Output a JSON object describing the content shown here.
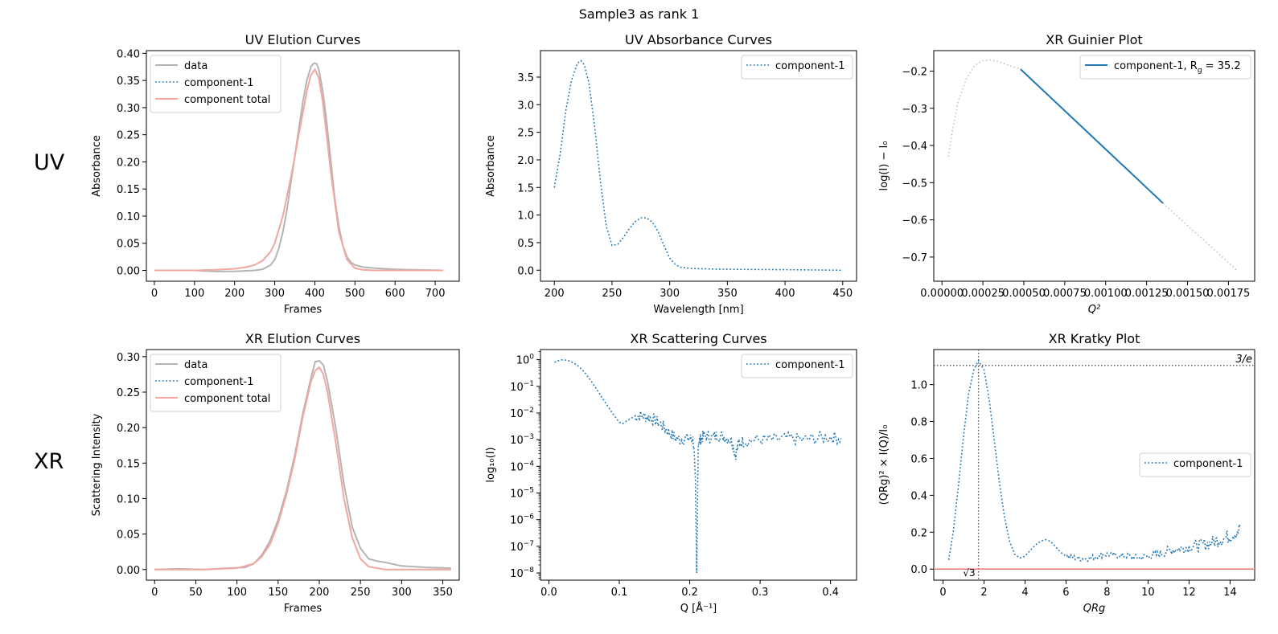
{
  "figure": {
    "suptitle": "Sample3 as rank 1",
    "row_labels": [
      "UV",
      "XR"
    ]
  },
  "colors": {
    "data": "#b4b4b4",
    "component": "#1f77b4",
    "total": "#f4a6a0",
    "total_line_kratky": "#f08080",
    "ref_line": "#555555",
    "guinier_fit": "#1f77b4",
    "guinier_outside": "#c0c0c0"
  },
  "chart_data": [
    {
      "id": "uv_elution",
      "type": "line",
      "title": "UV Elution Curves",
      "xlabel": "Frames",
      "ylabel": "Absorbance",
      "xlim": [
        -20,
        760
      ],
      "ylim": [
        -0.02,
        0.405
      ],
      "xticks": [
        0,
        100,
        200,
        300,
        400,
        500,
        600,
        700
      ],
      "yticks": [
        0.0,
        0.05,
        0.1,
        0.15,
        0.2,
        0.25,
        0.3,
        0.35,
        0.4
      ],
      "ytick_labels": [
        "0.00",
        "0.05",
        "0.10",
        "0.15",
        "0.20",
        "0.25",
        "0.30",
        "0.35",
        "0.40"
      ],
      "legend": "top-left",
      "series": [
        {
          "name": "data",
          "style": "data",
          "x": [
            0,
            50,
            100,
            150,
            200,
            250,
            270,
            290,
            300,
            310,
            320,
            330,
            340,
            350,
            360,
            370,
            380,
            390,
            395,
            400,
            405,
            410,
            420,
            430,
            440,
            450,
            460,
            470,
            480,
            490,
            500,
            520,
            550,
            600,
            650,
            720
          ],
          "y": [
            0.0,
            0.0,
            0.0,
            -0.002,
            -0.002,
            0.0,
            0.002,
            0.01,
            0.02,
            0.04,
            0.07,
            0.11,
            0.16,
            0.21,
            0.26,
            0.31,
            0.35,
            0.375,
            0.38,
            0.382,
            0.38,
            0.37,
            0.33,
            0.27,
            0.2,
            0.13,
            0.08,
            0.045,
            0.025,
            0.015,
            0.01,
            0.006,
            0.004,
            0.002,
            0.001,
            0.0
          ]
        },
        {
          "name": "component-1",
          "style": "component",
          "x": [
            0,
            100,
            150,
            200,
            230,
            250,
            270,
            290,
            300,
            320,
            340,
            360,
            380,
            390,
            400,
            410,
            420,
            440,
            460,
            480,
            500,
            520,
            550,
            600,
            720
          ],
          "y": [
            0.0,
            0.0,
            0.001,
            0.003,
            0.006,
            0.01,
            0.018,
            0.035,
            0.05,
            0.1,
            0.17,
            0.25,
            0.33,
            0.36,
            0.37,
            0.355,
            0.31,
            0.18,
            0.07,
            0.02,
            0.004,
            0.001,
            0.0,
            0.0,
            0.0
          ]
        },
        {
          "name": "component total",
          "style": "total",
          "x": [
            0,
            100,
            150,
            200,
            230,
            250,
            270,
            290,
            300,
            320,
            340,
            360,
            380,
            390,
            400,
            410,
            420,
            440,
            460,
            480,
            500,
            520,
            550,
            600,
            720
          ],
          "y": [
            0.0,
            0.0,
            0.001,
            0.003,
            0.006,
            0.01,
            0.018,
            0.035,
            0.05,
            0.1,
            0.17,
            0.25,
            0.33,
            0.36,
            0.37,
            0.355,
            0.31,
            0.18,
            0.07,
            0.02,
            0.004,
            0.001,
            0.0,
            0.0,
            0.0
          ]
        }
      ]
    },
    {
      "id": "uv_absorbance",
      "type": "line",
      "title": "UV Absorbance Curves",
      "xlabel": "Wavelength [nm]",
      "ylabel": "Absorbance",
      "xlim": [
        188,
        462
      ],
      "ylim": [
        -0.2,
        3.98
      ],
      "xticks": [
        200,
        250,
        300,
        350,
        400,
        450
      ],
      "yticks": [
        0.0,
        0.5,
        1.0,
        1.5,
        2.0,
        2.5,
        3.0,
        3.5
      ],
      "ytick_labels": [
        "0.0",
        "0.5",
        "1.0",
        "1.5",
        "2.0",
        "2.5",
        "3.0",
        "3.5"
      ],
      "legend": "top-right",
      "series": [
        {
          "name": "component-1",
          "style": "component",
          "x": [
            200,
            205,
            210,
            215,
            220,
            223,
            226,
            230,
            235,
            240,
            245,
            250,
            255,
            260,
            265,
            270,
            275,
            280,
            285,
            290,
            295,
            300,
            305,
            310,
            320,
            340,
            360,
            400,
            450
          ],
          "y": [
            1.5,
            2.1,
            2.9,
            3.45,
            3.75,
            3.8,
            3.72,
            3.4,
            2.6,
            1.6,
            0.8,
            0.45,
            0.47,
            0.6,
            0.75,
            0.88,
            0.95,
            0.95,
            0.87,
            0.7,
            0.45,
            0.22,
            0.1,
            0.05,
            0.03,
            0.02,
            0.015,
            0.01,
            0.0
          ]
        }
      ]
    },
    {
      "id": "xr_guinier",
      "type": "line",
      "title": "XR Guinier Plot",
      "xlabel": "Q²",
      "ylabel": "log(I) − I₀",
      "xlim": [
        -5e-05,
        0.00191
      ],
      "ylim": [
        -0.765,
        -0.145
      ],
      "xticks": [
        0.0,
        0.00025,
        0.0005,
        0.00075,
        0.001,
        0.00125,
        0.0015,
        0.00175
      ],
      "xtick_labels": [
        "0.00000",
        "0.00025",
        "0.00050",
        "0.00075",
        "0.00100",
        "0.00125",
        "0.00150",
        "0.00175"
      ],
      "yticks": [
        -0.7,
        -0.6,
        -0.5,
        -0.4,
        -0.3,
        -0.2
      ],
      "ytick_labels": [
        "−0.7",
        "−0.6",
        "−0.5",
        "−0.4",
        "−0.3",
        "−0.2"
      ],
      "legend": "top-right",
      "legend_label": "component-1, R",
      "legend_sub": "g",
      "legend_value": " = 35.2",
      "series": [
        {
          "name": "data-outside",
          "style": "outside",
          "x": [
            4e-05,
            6e-05,
            0.0001,
            0.00015,
            0.0002,
            0.00025,
            0.0003,
            0.00035,
            0.0004,
            0.00048
          ],
          "y": [
            -0.43,
            -0.37,
            -0.28,
            -0.22,
            -0.185,
            -0.172,
            -0.17,
            -0.175,
            -0.183,
            -0.195
          ]
        },
        {
          "name": "component-1",
          "style": "fit",
          "x": [
            0.00048,
            0.00135
          ],
          "y": [
            -0.195,
            -0.555
          ]
        },
        {
          "name": "data-outside-2",
          "style": "outside",
          "x": [
            0.00135,
            0.0015,
            0.00165,
            0.0018
          ],
          "y": [
            -0.555,
            -0.615,
            -0.675,
            -0.735
          ]
        }
      ]
    },
    {
      "id": "xr_elution",
      "type": "line",
      "title": "XR Elution Curves",
      "xlabel": "Frames",
      "ylabel": "Scattering Intensity",
      "xlim": [
        -10,
        370
      ],
      "ylim": [
        -0.015,
        0.31
      ],
      "xticks": [
        0,
        50,
        100,
        150,
        200,
        250,
        300,
        350
      ],
      "yticks": [
        0.0,
        0.05,
        0.1,
        0.15,
        0.2,
        0.25,
        0.3
      ],
      "ytick_labels": [
        "0.00",
        "0.05",
        "0.10",
        "0.15",
        "0.20",
        "0.25",
        "0.30"
      ],
      "legend": "top-left",
      "series": [
        {
          "name": "data",
          "style": "data",
          "x": [
            0,
            30,
            60,
            90,
            110,
            120,
            130,
            140,
            150,
            160,
            170,
            180,
            190,
            195,
            200,
            205,
            210,
            220,
            230,
            240,
            250,
            260,
            270,
            280,
            300,
            330,
            360
          ],
          "y": [
            0.0,
            0.001,
            0.0,
            0.002,
            0.003,
            0.008,
            0.02,
            0.04,
            0.07,
            0.11,
            0.16,
            0.22,
            0.27,
            0.293,
            0.294,
            0.288,
            0.265,
            0.2,
            0.12,
            0.06,
            0.03,
            0.015,
            0.012,
            0.01,
            0.005,
            0.003,
            0.002
          ]
        },
        {
          "name": "component-1",
          "style": "component",
          "x": [
            0,
            60,
            100,
            120,
            130,
            140,
            150,
            160,
            170,
            180,
            190,
            195,
            200,
            205,
            210,
            220,
            230,
            240,
            250,
            260,
            280,
            300,
            360
          ],
          "y": [
            0.0,
            0.0,
            0.002,
            0.008,
            0.018,
            0.035,
            0.065,
            0.105,
            0.155,
            0.215,
            0.265,
            0.28,
            0.285,
            0.275,
            0.25,
            0.18,
            0.1,
            0.045,
            0.015,
            0.004,
            0.0,
            0.0,
            0.0
          ]
        },
        {
          "name": "component total",
          "style": "total",
          "x": [
            0,
            60,
            100,
            120,
            130,
            140,
            150,
            160,
            170,
            180,
            190,
            195,
            200,
            205,
            210,
            220,
            230,
            240,
            250,
            260,
            280,
            300,
            360
          ],
          "y": [
            0.0,
            0.0,
            0.002,
            0.008,
            0.018,
            0.035,
            0.065,
            0.105,
            0.155,
            0.215,
            0.265,
            0.28,
            0.285,
            0.275,
            0.25,
            0.18,
            0.1,
            0.045,
            0.015,
            0.004,
            0.0,
            0.0,
            0.0
          ]
        }
      ]
    },
    {
      "id": "xr_scattering",
      "type": "line",
      "yscale": "log",
      "title": "XR Scattering Curves",
      "xlabel": "Q [Å⁻¹]",
      "ylabel": "log₁₀(I)",
      "xlim": [
        -0.012,
        0.437
      ],
      "ylim_log10": [
        -8.27,
        0.38
      ],
      "xticks": [
        0.0,
        0.1,
        0.2,
        0.3,
        0.4
      ],
      "xtick_labels": [
        "0.0",
        "0.1",
        "0.2",
        "0.3",
        "0.4"
      ],
      "yticks_log10": [
        0,
        -1,
        -2,
        -3,
        -4,
        -5,
        -6,
        -7,
        -8
      ],
      "ytick_base": "10",
      "ytick_exps": [
        "0",
        "−1",
        "−2",
        "−3",
        "−4",
        "−5",
        "−6",
        "−7",
        "−8"
      ],
      "legend": "top-right",
      "series": [
        {
          "name": "component-1",
          "style": "component",
          "scatter_noise": true,
          "x": [
            0.008,
            0.015,
            0.02,
            0.03,
            0.04,
            0.05,
            0.06,
            0.07,
            0.08,
            0.09,
            0.1,
            0.105,
            0.11,
            0.12,
            0.13,
            0.14,
            0.15,
            0.16,
            0.17,
            0.18,
            0.19,
            0.2,
            0.205,
            0.208,
            0.21,
            0.212,
            0.215,
            0.22,
            0.23,
            0.24,
            0.25,
            0.26,
            0.265,
            0.27,
            0.28,
            0.3,
            0.32,
            0.34,
            0.36,
            0.38,
            0.4,
            0.415
          ],
          "y_log10": [
            -0.1,
            -0.02,
            0.0,
            -0.05,
            -0.2,
            -0.45,
            -0.8,
            -1.2,
            -1.6,
            -2.0,
            -2.35,
            -2.4,
            -2.3,
            -2.15,
            -2.1,
            -2.15,
            -2.25,
            -2.45,
            -2.7,
            -2.95,
            -3.0,
            -2.95,
            -3.0,
            -4.5,
            -8.0,
            -3.1,
            -3.0,
            -2.85,
            -2.9,
            -2.85,
            -2.9,
            -3.05,
            -3.6,
            -3.1,
            -3.05,
            -3.0,
            -3.0,
            -2.95,
            -3.0,
            -2.95,
            -2.9,
            -2.95
          ]
        }
      ]
    },
    {
      "id": "xr_kratky",
      "type": "line",
      "title": "XR Kratky Plot",
      "xlabel": "QRg",
      "ylabel": "(QRg)² × I(Q)/I₀",
      "xlim": [
        -0.45,
        15.2
      ],
      "ylim": [
        -0.06,
        1.19
      ],
      "xticks": [
        0,
        2,
        4,
        6,
        8,
        10,
        12,
        14
      ],
      "xtick_labels": [
        "0",
        "2",
        "4",
        "6",
        "8",
        "10",
        "12",
        "14"
      ],
      "yticks": [
        0.0,
        0.2,
        0.4,
        0.6,
        0.8,
        1.0
      ],
      "ytick_labels": [
        "0.0",
        "0.2",
        "0.4",
        "0.6",
        "0.8",
        "1.0"
      ],
      "legend": "center-right",
      "hline_value": 1.1036,
      "hline_label": "3/e",
      "vline_value": 1.732,
      "vline_label": "√3",
      "series": [
        {
          "name": "component-1",
          "style": "component",
          "noise_after": 9,
          "x": [
            0.28,
            0.5,
            0.75,
            1.0,
            1.25,
            1.5,
            1.73,
            2.0,
            2.25,
            2.5,
            2.75,
            3.0,
            3.25,
            3.5,
            3.75,
            4.0,
            4.25,
            4.5,
            4.75,
            5.0,
            5.25,
            5.5,
            5.75,
            6.0,
            6.5,
            7.0,
            7.5,
            8.0,
            8.5,
            9.0,
            9.5,
            10.0,
            10.5,
            11.0,
            11.5,
            12.0,
            12.5,
            13.0,
            13.5,
            14.0,
            14.5
          ],
          "y": [
            0.05,
            0.2,
            0.45,
            0.72,
            0.95,
            1.08,
            1.13,
            1.08,
            0.92,
            0.7,
            0.47,
            0.28,
            0.15,
            0.08,
            0.06,
            0.07,
            0.1,
            0.13,
            0.15,
            0.16,
            0.15,
            0.12,
            0.09,
            0.07,
            0.06,
            0.055,
            0.07,
            0.08,
            0.075,
            0.07,
            0.06,
            0.07,
            0.08,
            0.1,
            0.11,
            0.12,
            0.13,
            0.14,
            0.16,
            0.18,
            0.22
          ]
        }
      ]
    }
  ]
}
